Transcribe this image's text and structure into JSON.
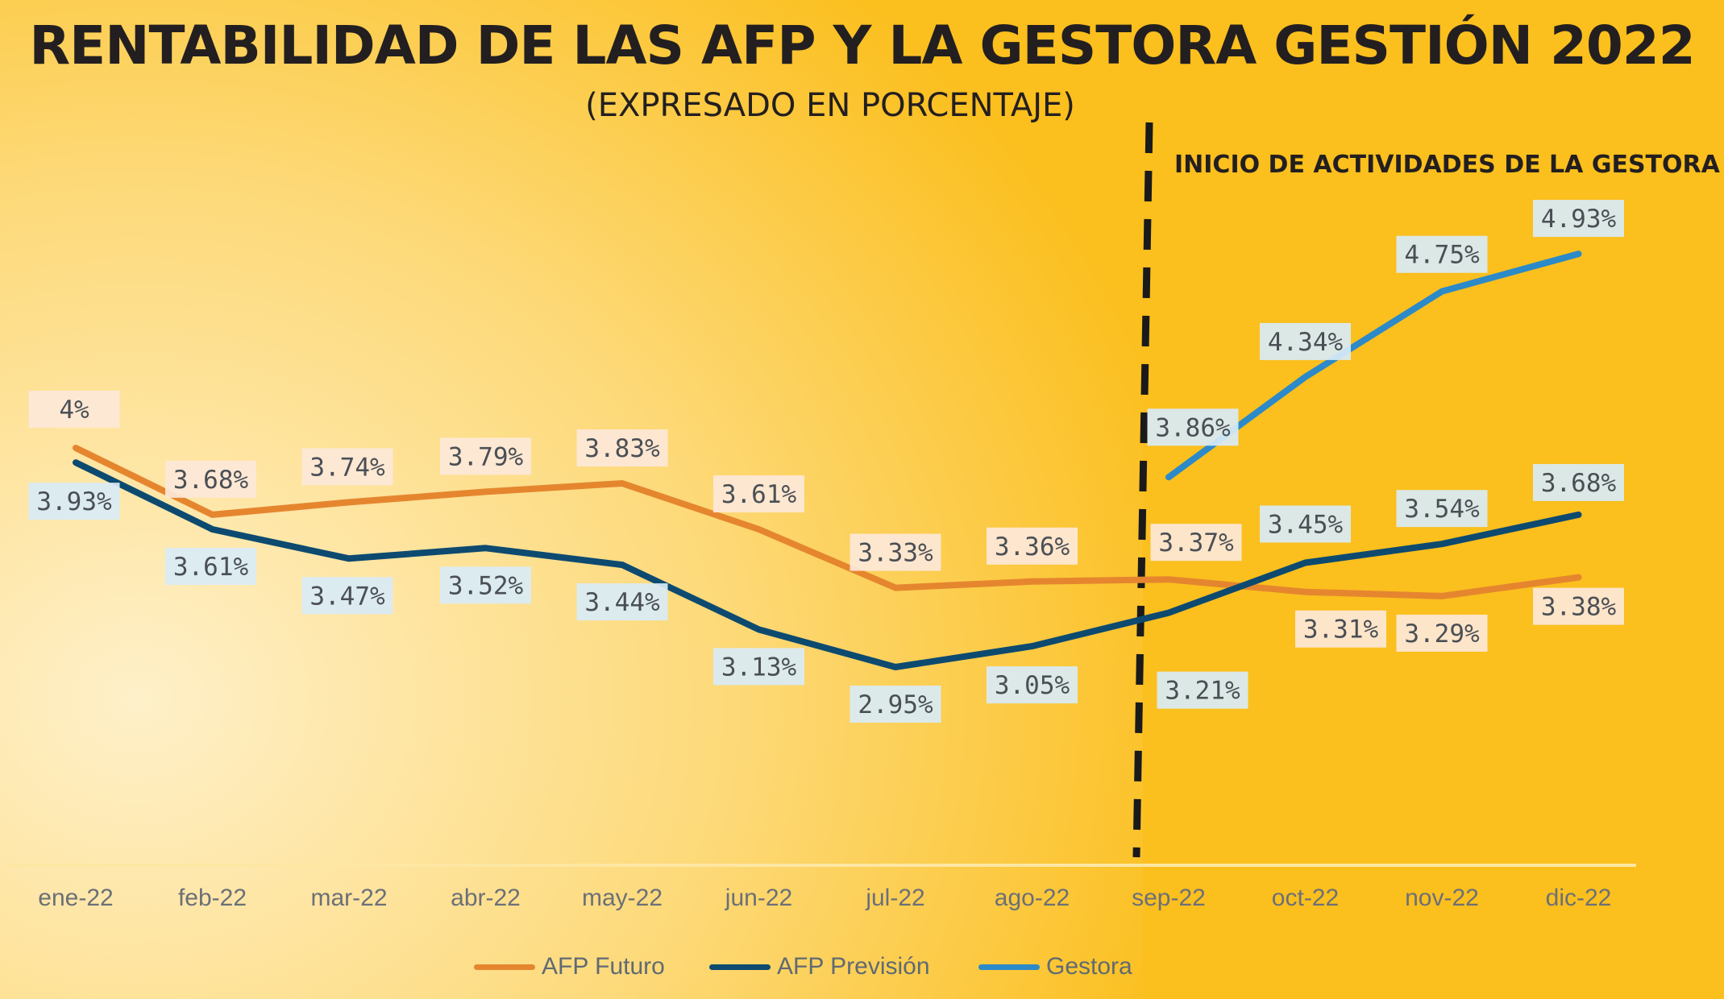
{
  "header": {
    "title": "RENTABILIDAD DE LAS AFP Y LA GESTORA GESTIÓN 2022",
    "subtitle": "(EXPRESADO EN PORCENTAJE)"
  },
  "annotation": {
    "text": "INICIO DE ACTIVIDADES DE LA GESTORA",
    "at_category": "sep-22"
  },
  "colors": {
    "background": "#fbbf1e",
    "highlight_light": "#fde4a6",
    "afp_futuro": "#e5862f",
    "afp_prevision": "#0d4a70",
    "gestora": "#2c8ac8",
    "label_futuro_bg": "#fde8d9",
    "label_prevision_bg": "#d9ecf6",
    "axis_text": "#6b7078"
  },
  "chart_data": {
    "type": "line",
    "title": "RENTABILIDAD DE LAS AFP Y LA GESTORA GESTIÓN 2022",
    "subtitle": "(EXPRESADO EN PORCENTAJE)",
    "xlabel": "",
    "ylabel": "",
    "ylim": [
      2.0,
      5.5
    ],
    "grid": false,
    "legend_position": "bottom",
    "categories": [
      "ene-22",
      "feb-22",
      "mar-22",
      "abr-22",
      "may-22",
      "jun-22",
      "jul-22",
      "ago-22",
      "sep-22",
      "oct-22",
      "nov-22",
      "dic-22"
    ],
    "series": [
      {
        "name": "AFP Futuro",
        "color": "#e5862f",
        "values": [
          4.0,
          3.68,
          3.74,
          3.79,
          3.83,
          3.61,
          3.33,
          3.36,
          3.37,
          3.31,
          3.29,
          3.38
        ],
        "labels": [
          "4%",
          "3.68%",
          "3.74%",
          "3.79%",
          "3.83%",
          "3.61%",
          "3.33%",
          "3.36%",
          "3.37%",
          "3.31%",
          "3.29%",
          "3.38%"
        ]
      },
      {
        "name": "AFP Previsión",
        "color": "#0d4a70",
        "values": [
          3.93,
          3.61,
          3.47,
          3.52,
          3.44,
          3.13,
          2.95,
          3.05,
          3.21,
          3.45,
          3.54,
          3.68
        ],
        "labels": [
          "3.93%",
          "3.61%",
          "3.47%",
          "3.52%",
          "3.44%",
          "3.13%",
          "2.95%",
          "3.05%",
          "3.21%",
          "3.45%",
          "3.54%",
          "3.68%"
        ]
      },
      {
        "name": "Gestora",
        "color": "#2c8ac8",
        "values": [
          null,
          null,
          null,
          null,
          null,
          null,
          null,
          null,
          3.86,
          4.34,
          4.75,
          4.93
        ],
        "labels": [
          null,
          null,
          null,
          null,
          null,
          null,
          null,
          null,
          "3.86%",
          "4.34%",
          "4.75%",
          "4.93%"
        ]
      }
    ]
  }
}
